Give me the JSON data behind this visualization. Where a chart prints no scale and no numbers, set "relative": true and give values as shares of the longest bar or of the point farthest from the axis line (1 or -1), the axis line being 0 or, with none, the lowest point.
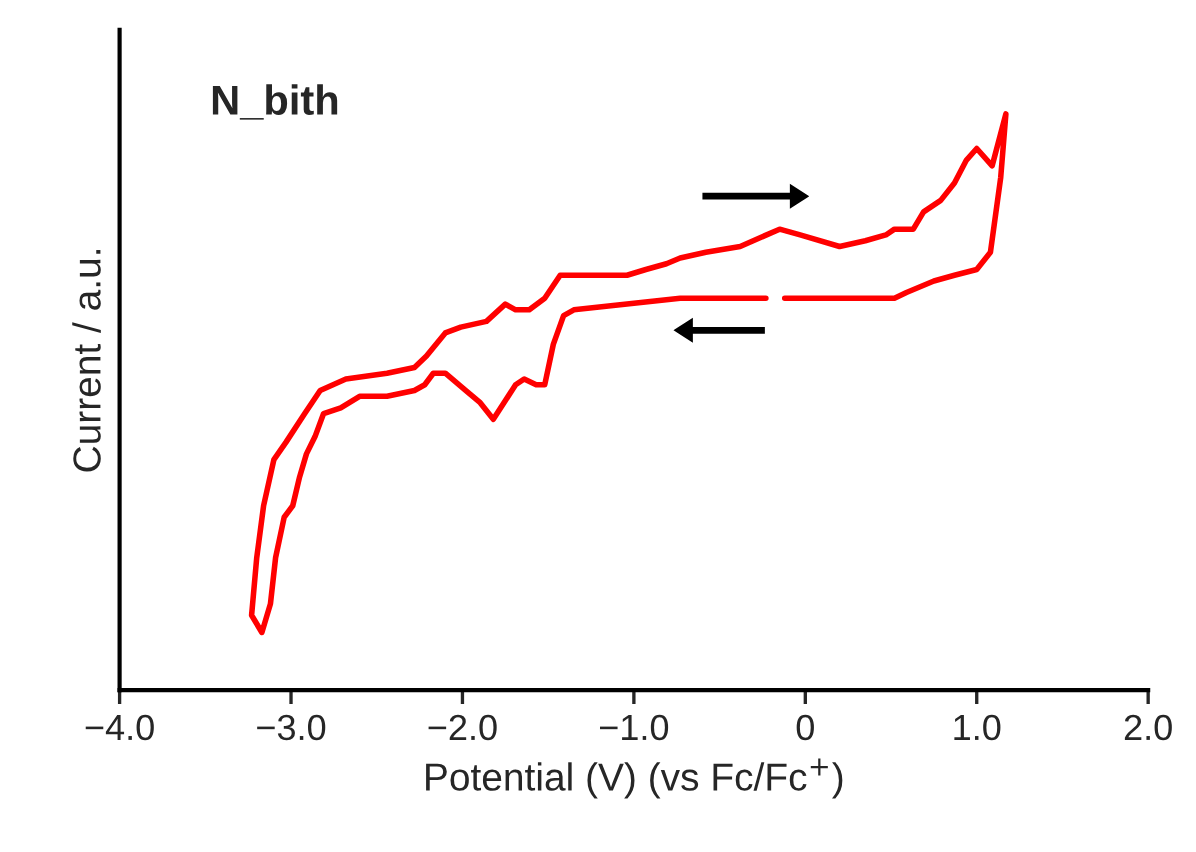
{
  "chart_data": {
    "type": "line",
    "title": "N_bith",
    "xlabel": "Potential (V) (vs Fc/Fc$^{+}$)",
    "ylabel": "Current / a.u.",
    "relative": true,
    "xlim": [
      -4.0,
      2.0
    ],
    "xticks": [
      {
        "value": -4.0,
        "label": "−4.0"
      },
      {
        "value": -3.0,
        "label": "−3.0"
      },
      {
        "value": -2.0,
        "label": "−2.0"
      },
      {
        "value": -1.0,
        "label": "−1.0"
      },
      0,
      {
        "value": 1.0,
        "label": "1.0"
      },
      {
        "value": 2.0,
        "label": "2.0"
      }
    ],
    "tick_labels": "x",
    "grid": false,
    "legend": false,
    "marker": "none",
    "line_style": "solid",
    "series": [
      {
        "color": "#ff0000",
        "x": [
          -0.23,
          -0.73,
          -1.35,
          -1.41,
          -1.47,
          -1.52,
          -1.57,
          -1.64,
          -1.69,
          -1.82,
          -1.9,
          -1.98,
          -2.1,
          -2.17,
          -2.22,
          -2.28,
          -2.44,
          -2.6,
          -2.71,
          -2.81,
          -2.86,
          -2.91,
          -2.95,
          -2.99,
          -3.04,
          -3.09,
          -3.12,
          -3.17,
          -3.23,
          -3.2,
          -3.16,
          -3.1,
          -3.03,
          -2.92,
          -2.83,
          -2.68,
          -2.44,
          -2.28,
          -2.21,
          -2.1,
          -2.01,
          -1.86,
          -1.75,
          -1.69,
          -1.61,
          -1.52,
          -1.43,
          -1.35,
          -1.28,
          -1.04,
          -0.93,
          -0.81,
          -0.73,
          -0.58,
          -0.38,
          -0.15,
          -0.03,
          0.2,
          0.35,
          0.47,
          0.52,
          0.63,
          0.69,
          0.79,
          0.87,
          0.94,
          1.0,
          1.09,
          1.17,
          1.14,
          1.08,
          1.0,
          0.87,
          0.75,
          0.59,
          0.52,
          0.2,
          -0.12
        ],
        "values": [
          0.68,
          0.68,
          0.66,
          0.65,
          0.6,
          0.53,
          0.53,
          0.54,
          0.53,
          0.47,
          0.5,
          0.52,
          0.55,
          0.55,
          0.53,
          0.52,
          0.51,
          0.51,
          0.49,
          0.48,
          0.44,
          0.41,
          0.37,
          0.32,
          0.3,
          0.23,
          0.15,
          0.1,
          0.13,
          0.23,
          0.32,
          0.4,
          0.43,
          0.48,
          0.52,
          0.54,
          0.55,
          0.56,
          0.58,
          0.62,
          0.63,
          0.64,
          0.67,
          0.66,
          0.66,
          0.68,
          0.72,
          0.72,
          0.72,
          0.72,
          0.73,
          0.74,
          0.75,
          0.76,
          0.77,
          0.8,
          0.79,
          0.77,
          0.78,
          0.79,
          0.8,
          0.8,
          0.83,
          0.85,
          0.88,
          0.92,
          0.94,
          0.91,
          1.0,
          0.89,
          0.76,
          0.73,
          0.72,
          0.71,
          0.69,
          0.68,
          0.68,
          0.68
        ]
      }
    ]
  }
}
